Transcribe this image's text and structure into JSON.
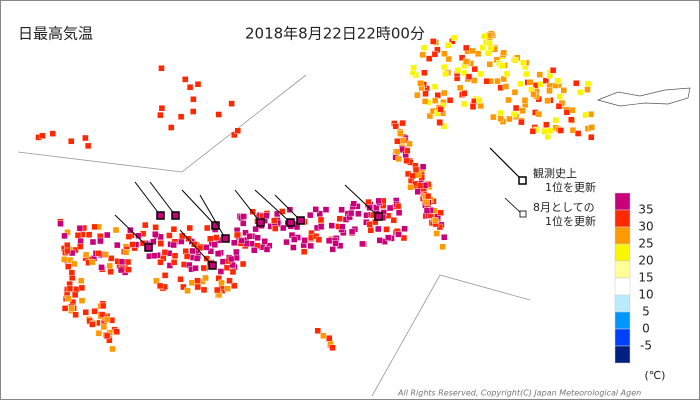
{
  "header": {
    "title": "日最高気温",
    "datetime": "2018年8月22日22時00分"
  },
  "legend": {
    "record_all_time": [
      "観測史上",
      "1位を更新"
    ],
    "record_august": [
      "8月としての",
      "1位を更新"
    ]
  },
  "color_scale": {
    "thresholds": [
      35,
      30,
      25,
      20,
      15,
      10,
      5,
      0,
      -5
    ],
    "colors": [
      "#c8007a",
      "#ff2800",
      "#ff9900",
      "#faf500",
      "#ffff96",
      "#ffffff",
      "#b9ebff",
      "#0096ff",
      "#0041ff",
      "#002080"
    ],
    "unit": "(℃)"
  },
  "footer": {
    "copyright": "All Rights Reserved, Copyright(C) Japan Meteorological Agen"
  }
}
